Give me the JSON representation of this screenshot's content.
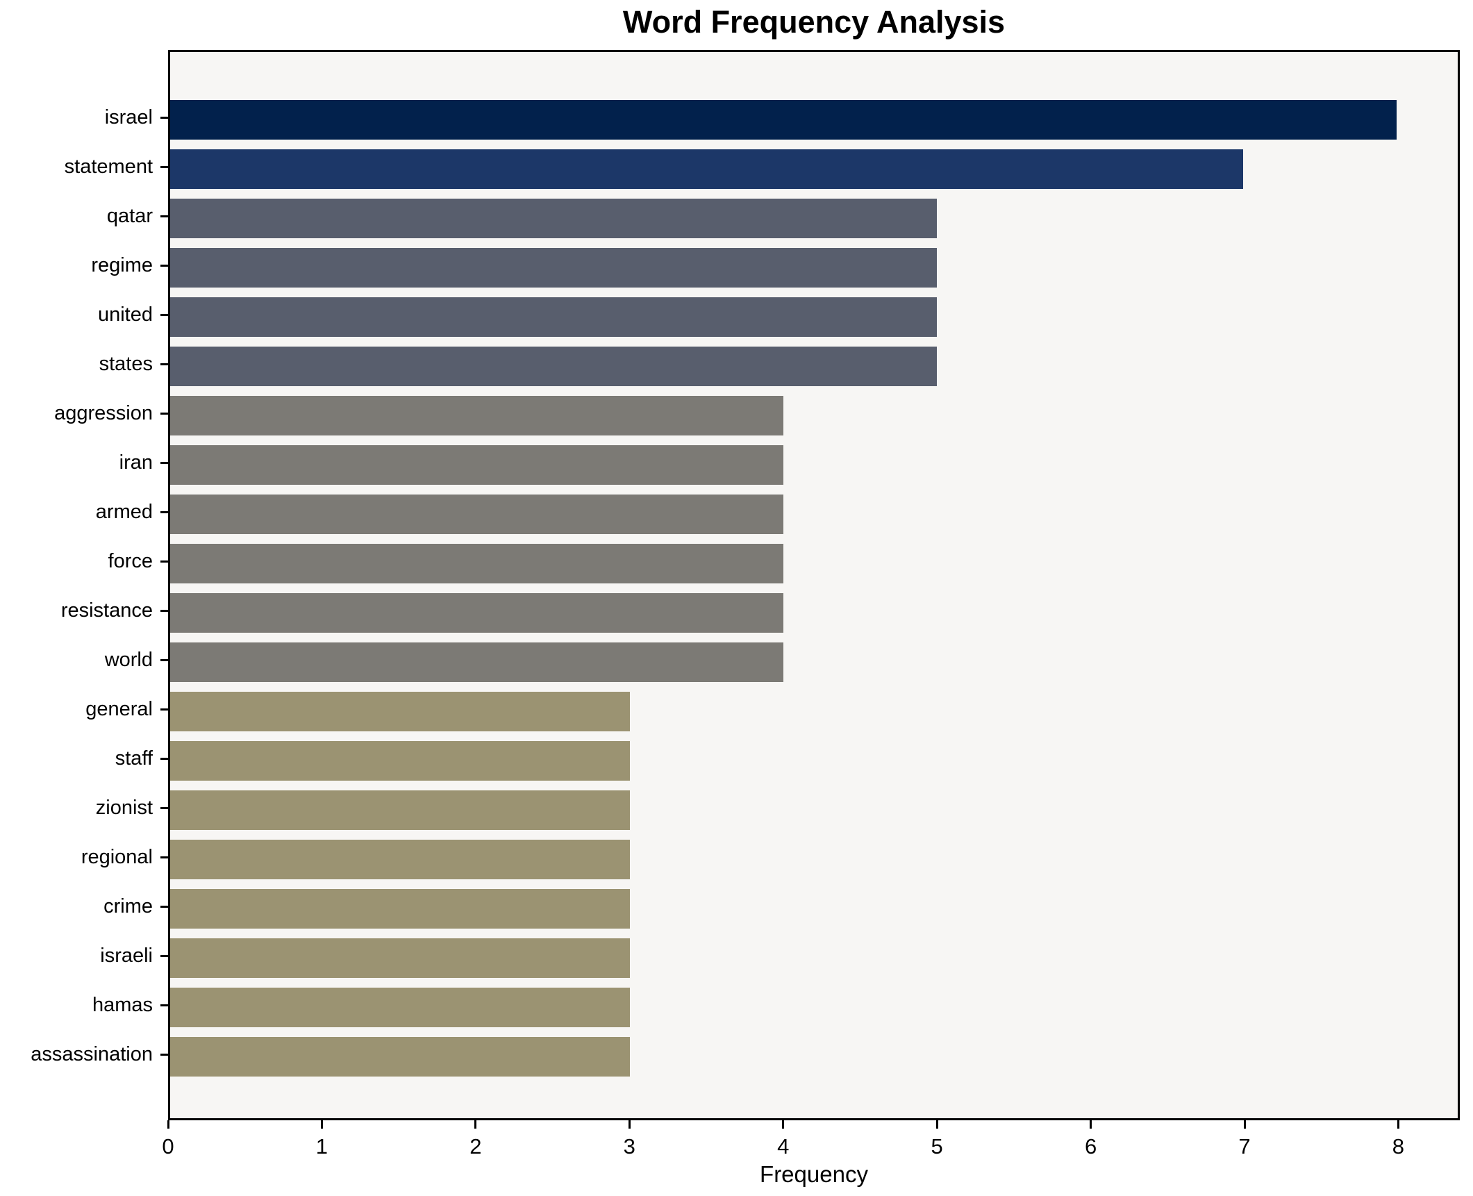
{
  "title": "Word Frequency Analysis",
  "chart_data": {
    "type": "bar",
    "orientation": "horizontal",
    "title": "Word Frequency Analysis",
    "xlabel": "Frequency",
    "ylabel": "",
    "xlim": [
      0,
      8.4
    ],
    "xticks": [
      0,
      1,
      2,
      3,
      4,
      5,
      6,
      7,
      8
    ],
    "grid": false,
    "legend": "none",
    "plot_background": "#f7f6f4",
    "figure_background": "#ffffff",
    "axis_color": "#000000",
    "categories": [
      "israel",
      "statement",
      "qatar",
      "regime",
      "united",
      "states",
      "aggression",
      "iran",
      "armed",
      "force",
      "resistance",
      "world",
      "general",
      "staff",
      "zionist",
      "regional",
      "crime",
      "israeli",
      "hamas",
      "assassination"
    ],
    "values": [
      8,
      7,
      5,
      5,
      5,
      5,
      4,
      4,
      4,
      4,
      4,
      4,
      3,
      3,
      3,
      3,
      3,
      3,
      3,
      3
    ],
    "bar_colors_by_value": {
      "8": "#02214c",
      "7": "#1c3768",
      "5": "#585e6d",
      "4": "#7c7a75",
      "3": "#9b9372"
    }
  }
}
